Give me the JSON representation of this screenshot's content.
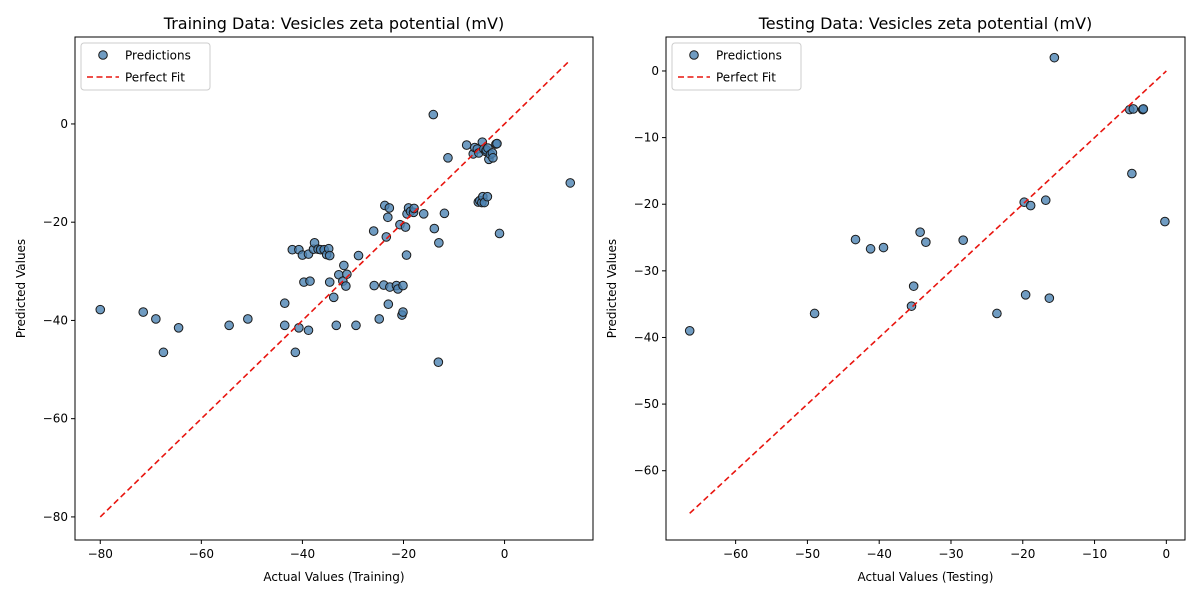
{
  "chart_data": [
    {
      "type": "scatter",
      "title": "Training Data: Vesicles zeta potential (mV)",
      "xlabel": "Actual Values (Training)",
      "ylabel": "Predicted Values",
      "xlim": [
        -85,
        17.5
      ],
      "ylim": [
        -84.7,
        17.7
      ],
      "xticks": [
        -80,
        -60,
        -40,
        -20,
        0
      ],
      "yticks": [
        -80,
        -60,
        -40,
        -20,
        0
      ],
      "grid": false,
      "legend_position": "top-left",
      "legend": [
        "Predictions",
        "Perfect Fit"
      ],
      "colors": {
        "points": "#4c83b3",
        "point_edge": "#1a1a1a",
        "fit_line": "#e8150f"
      },
      "fit_line": {
        "name": "Perfect Fit",
        "from": [
          -80,
          -80
        ],
        "to": [
          13,
          13
        ]
      },
      "series": [
        {
          "name": "Predictions",
          "points": [
            [
              -80,
              -37.8
            ],
            [
              -71.5,
              -38.3
            ],
            [
              -69,
              -39.7
            ],
            [
              -67.5,
              -46.5
            ],
            [
              -64.5,
              -41.5
            ],
            [
              -54.5,
              -41
            ],
            [
              -50.8,
              -39.7
            ],
            [
              -43.5,
              -36.5
            ],
            [
              -43.5,
              -41
            ],
            [
              -42,
              -25.6
            ],
            [
              -41.4,
              -46.5
            ],
            [
              -40.7,
              -25.6
            ],
            [
              -40.7,
              -41.5
            ],
            [
              -40,
              -26.7
            ],
            [
              -39.7,
              -32.2
            ],
            [
              -38.8,
              -26.5
            ],
            [
              -38.8,
              -42
            ],
            [
              -38.5,
              -32
            ],
            [
              -37.8,
              -25.5
            ],
            [
              -37.6,
              -24.2
            ],
            [
              -36.9,
              -25.5
            ],
            [
              -36.4,
              -25.6
            ],
            [
              -35.7,
              -25.6
            ],
            [
              -35.2,
              -26.6
            ],
            [
              -34.8,
              -25.4
            ],
            [
              -34.6,
              -26.8
            ],
            [
              -34.6,
              -32.2
            ],
            [
              -33.8,
              -35.3
            ],
            [
              -33.3,
              -41
            ],
            [
              -32.8,
              -30.7
            ],
            [
              -32,
              -32
            ],
            [
              -31.8,
              -28.8
            ],
            [
              -31.4,
              -33
            ],
            [
              -31.2,
              -30.6
            ],
            [
              -29.4,
              -41
            ],
            [
              -28.9,
              -26.8
            ],
            [
              -25.9,
              -21.8
            ],
            [
              -25.8,
              -32.9
            ],
            [
              -24.8,
              -39.7
            ],
            [
              -23.9,
              -32.8
            ],
            [
              -23.7,
              -16.6
            ],
            [
              -23.4,
              -23
            ],
            [
              -23.1,
              -19
            ],
            [
              -23,
              -36.7
            ],
            [
              -22.8,
              -17.1
            ],
            [
              -22.7,
              -33.2
            ],
            [
              -21.4,
              -32.9
            ],
            [
              -21.1,
              -33.6
            ],
            [
              -20.7,
              -20.5
            ],
            [
              -20.3,
              -38.9
            ],
            [
              -20.1,
              -38.3
            ],
            [
              -20.1,
              -32.9
            ],
            [
              -19.6,
              -21
            ],
            [
              -19.4,
              -26.7
            ],
            [
              -19.3,
              -18.3
            ],
            [
              -19,
              -17.1
            ],
            [
              -18.6,
              -17.8
            ],
            [
              -18,
              -18
            ],
            [
              -17.9,
              -17.2
            ],
            [
              -16,
              -18.3
            ],
            [
              -14.1,
              1.9
            ],
            [
              -13.9,
              -21.3
            ],
            [
              -13.1,
              -48.5
            ],
            [
              -13,
              -24.2
            ],
            [
              -11.9,
              -18.2
            ],
            [
              -11.2,
              -6.9
            ],
            [
              -7.5,
              -4.3
            ],
            [
              -6.2,
              -6.1
            ],
            [
              -5.9,
              -4.8
            ],
            [
              -5.4,
              -5.1
            ],
            [
              -5.1,
              -5.9
            ],
            [
              -5.2,
              -15.9
            ],
            [
              -4.9,
              -15.6
            ],
            [
              -4.5,
              -16
            ],
            [
              -4.4,
              -3.7
            ],
            [
              -4.3,
              -14.8
            ],
            [
              -4.1,
              -5.1
            ],
            [
              -4,
              -16
            ],
            [
              -3.7,
              -5.6
            ],
            [
              -3.6,
              -5.3
            ],
            [
              -3.4,
              -14.8
            ],
            [
              -3.3,
              -4.9
            ],
            [
              -3.1,
              -7.2
            ],
            [
              -2.8,
              -6.2
            ],
            [
              -2.4,
              -5.9
            ],
            [
              -2.3,
              -6.9
            ],
            [
              -1.7,
              -4.1
            ],
            [
              -1.5,
              -4
            ],
            [
              -1,
              -22.3
            ],
            [
              13,
              -12
            ]
          ]
        }
      ]
    },
    {
      "type": "scatter",
      "title": "Testing Data: Vesicles zeta potential (mV)",
      "xlabel": "Actual Values (Testing)",
      "ylabel": "Predicted Values",
      "xlim": [
        -69.7,
        2.6
      ],
      "ylim": [
        -70.4,
        5.1
      ],
      "xticks": [
        -60,
        -50,
        -40,
        -30,
        -20,
        -10,
        0
      ],
      "yticks": [
        -60,
        -50,
        -40,
        -30,
        -20,
        -10,
        0
      ],
      "grid": false,
      "legend_position": "top-left",
      "legend": [
        "Predictions",
        "Perfect Fit"
      ],
      "colors": {
        "points": "#4c83b3",
        "point_edge": "#1a1a1a",
        "fit_line": "#e8150f"
      },
      "fit_line": {
        "name": "Perfect Fit",
        "from": [
          -66.4,
          -66.4
        ],
        "to": [
          0,
          0
        ]
      },
      "series": [
        {
          "name": "Predictions",
          "points": [
            [
              -66.4,
              -39
            ],
            [
              -49,
              -36.4
            ],
            [
              -43.3,
              -25.3
            ],
            [
              -41.2,
              -26.7
            ],
            [
              -39.4,
              -26.5
            ],
            [
              -35.5,
              -35.3
            ],
            [
              -35.2,
              -32.3
            ],
            [
              -34.3,
              -24.2
            ],
            [
              -33.5,
              -25.7
            ],
            [
              -28.3,
              -25.4
            ],
            [
              -23.6,
              -36.4
            ],
            [
              -19.8,
              -19.7
            ],
            [
              -19.6,
              -33.6
            ],
            [
              -18.9,
              -20.2
            ],
            [
              -16.8,
              -19.4
            ],
            [
              -16.3,
              -34.1
            ],
            [
              -15.6,
              2
            ],
            [
              -5.1,
              -5.8
            ],
            [
              -4.8,
              -15.4
            ],
            [
              -4.6,
              -5.7
            ],
            [
              -3.3,
              -5.8
            ],
            [
              -3.2,
              -5.7
            ],
            [
              -0.2,
              -22.6
            ]
          ]
        }
      ]
    }
  ]
}
